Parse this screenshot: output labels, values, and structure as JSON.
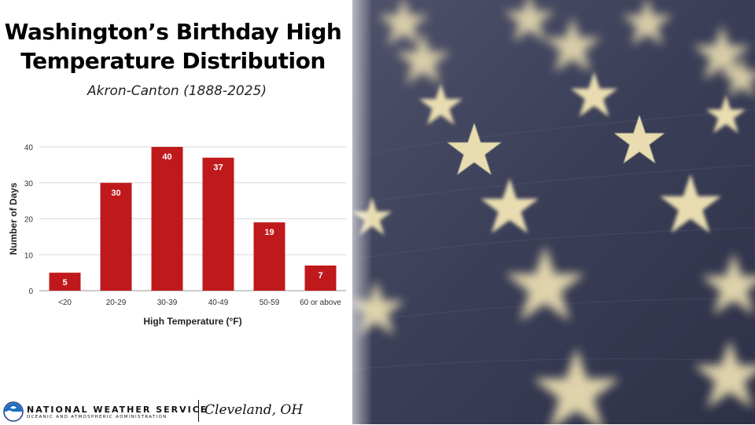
{
  "title_line1": "Washington’s Birthday High",
  "title_line2": "Temperature Distribution",
  "subtitle": "Akron-Canton (1888-2025)",
  "chart_data": {
    "type": "bar",
    "title": "",
    "xlabel": "High Temperature (°F)",
    "ylabel": "Number of Days",
    "categories": [
      "<20",
      "20-29",
      "30-39",
      "40-49",
      "50-59",
      "60 or above"
    ],
    "values": [
      5,
      30,
      40,
      37,
      19,
      7
    ],
    "data_labels": [
      "5",
      "30",
      "40",
      "37",
      "19",
      "7"
    ],
    "ylim": [
      0,
      40
    ],
    "yticks": [
      0,
      10,
      20,
      30,
      40
    ],
    "ytick_labels": [
      "0",
      "10",
      "20",
      "30",
      "40"
    ],
    "grid": true,
    "bar_color": "#c0191c"
  },
  "footer": {
    "org_name": "NATIONAL WEATHER SERVICE",
    "org_sub": "OCEANIC AND ATMOSPHERIC ADMINISTRATION",
    "office": "Cleveland, OH",
    "logo_icon": "noaa-logo-icon"
  },
  "photo": {
    "subject": "american-flag-stars-photo"
  }
}
